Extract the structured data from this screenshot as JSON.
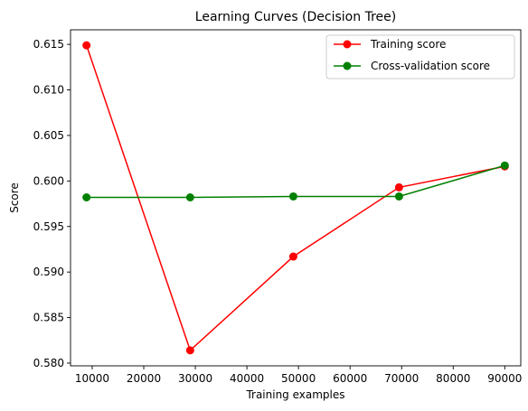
{
  "chart_data": {
    "type": "line",
    "title": "Learning Curves (Decision Tree)",
    "xlabel": "Training examples",
    "ylabel": "Score",
    "x": [
      8900,
      29000,
      49000,
      69500,
      90000
    ],
    "series": [
      {
        "name": "Training score",
        "color": "#ff0000",
        "marker": "circle",
        "values": [
          0.6149,
          0.5814,
          0.5917,
          0.5993,
          0.6016
        ]
      },
      {
        "name": "Cross-validation score",
        "color": "#008000",
        "marker": "circle",
        "values": [
          0.5982,
          0.5982,
          0.5983,
          0.5983,
          0.6017
        ]
      }
    ],
    "xlim": [
      5800,
      93100
    ],
    "ylim": [
      0.5797,
      0.6166
    ],
    "xticks": [
      10000,
      20000,
      30000,
      40000,
      50000,
      60000,
      70000,
      80000,
      90000
    ],
    "xtick_labels": [
      "10000",
      "20000",
      "30000",
      "40000",
      "50000",
      "60000",
      "70000",
      "80000",
      "90000"
    ],
    "yticks": [
      0.58,
      0.585,
      0.59,
      0.595,
      0.6,
      0.605,
      0.61,
      0.615
    ],
    "ytick_labels": [
      "0.580",
      "0.585",
      "0.590",
      "0.595",
      "0.600",
      "0.605",
      "0.610",
      "0.615"
    ],
    "grid": false,
    "legend": "top-right"
  }
}
